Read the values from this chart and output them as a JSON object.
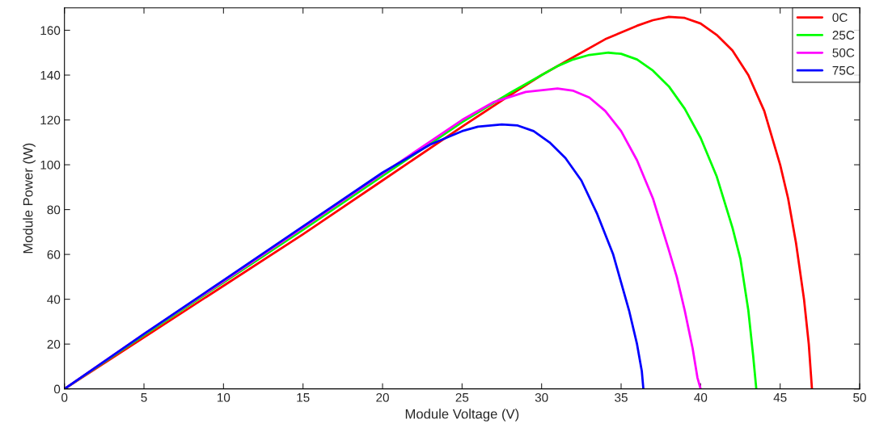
{
  "chart_data": {
    "type": "line",
    "xlabel": "Module Voltage (V)",
    "ylabel": "Module Power (W)",
    "xlim": [
      0,
      50
    ],
    "ylim": [
      0,
      170
    ],
    "xticks": [
      0,
      5,
      10,
      15,
      20,
      25,
      30,
      35,
      40,
      45,
      50
    ],
    "yticks": [
      0,
      20,
      40,
      60,
      80,
      100,
      120,
      140,
      160
    ],
    "legend": "top right",
    "grid": false,
    "marker": "none",
    "line_style": "solid",
    "series": [
      {
        "name": "0C",
        "color": "#ff0000",
        "x": [
          0,
          5,
          10,
          15,
          20,
          25,
          28,
          30,
          32,
          34,
          36,
          37,
          38,
          39,
          40,
          41,
          42,
          43,
          44,
          45,
          45.5,
          46,
          46.5,
          46.8,
          47
        ],
        "values": [
          0,
          23,
          46,
          69,
          93,
          117,
          131,
          140,
          148,
          156,
          162,
          164.5,
          166,
          165.5,
          163,
          158,
          151,
          140,
          124,
          100,
          85,
          65,
          40,
          20,
          0
        ]
      },
      {
        "name": "25C",
        "color": "#00ff00",
        "x": [
          0,
          5,
          10,
          15,
          20,
          25,
          28,
          30,
          31,
          32,
          33,
          34.2,
          35,
          36,
          37,
          38,
          39,
          40,
          41,
          42,
          42.5,
          43,
          43.3,
          43.5
        ],
        "values": [
          0,
          24,
          47.5,
          71,
          95,
          119,
          132,
          140,
          144,
          147,
          149,
          150,
          149.5,
          147,
          142,
          135,
          125,
          112,
          95,
          72,
          58,
          35,
          15,
          0
        ]
      },
      {
        "name": "50C",
        "color": "#ff00ff",
        "x": [
          0,
          5,
          10,
          15,
          20,
          25,
          27,
          29,
          31,
          32,
          33,
          34,
          35,
          36,
          37,
          38,
          38.5,
          39,
          39.5,
          39.8,
          40
        ],
        "values": [
          0,
          24.5,
          48,
          72,
          96,
          120,
          128,
          132.5,
          134,
          133,
          130,
          124,
          115,
          102,
          85,
          62,
          50,
          35,
          18,
          5,
          0
        ]
      },
      {
        "name": "75C",
        "color": "#0000ff",
        "x": [
          0,
          5,
          10,
          15,
          20,
          23,
          25,
          26,
          27.5,
          28.5,
          29.5,
          30.5,
          31.5,
          32.5,
          33.5,
          34.5,
          35.5,
          36,
          36.3,
          36.4
        ],
        "values": [
          0,
          24.5,
          48.5,
          72.5,
          96.5,
          109,
          115,
          117,
          118,
          117.5,
          115,
          110,
          103,
          93,
          78,
          60,
          35,
          20,
          8,
          0
        ]
      }
    ]
  }
}
